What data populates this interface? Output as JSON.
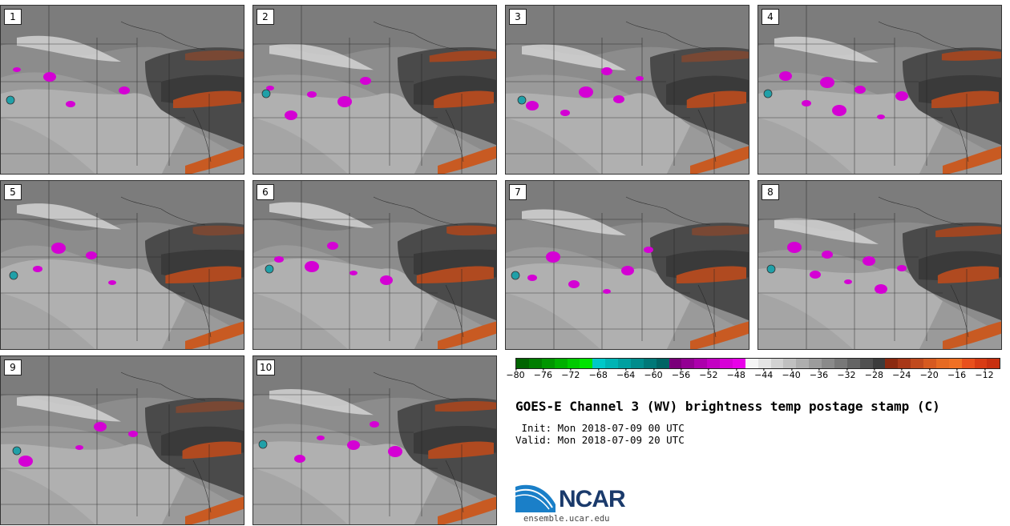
{
  "stamps": [
    {
      "label": "1"
    },
    {
      "label": "2"
    },
    {
      "label": "3"
    },
    {
      "label": "4"
    },
    {
      "label": "5"
    },
    {
      "label": "6"
    },
    {
      "label": "7"
    },
    {
      "label": "8"
    },
    {
      "label": "9"
    },
    {
      "label": "10"
    }
  ],
  "colorbar": {
    "colors": [
      "#006400",
      "#007d00",
      "#009600",
      "#00b000",
      "#00ca00",
      "#00e400",
      "#00c8c8",
      "#00b4b4",
      "#00a0a0",
      "#008c8c",
      "#007878",
      "#006464",
      "#7a007a",
      "#930093",
      "#ac00ac",
      "#c300c3",
      "#d700d7",
      "#e800e8",
      "#f5f5f5",
      "#e4e4e4",
      "#d2d2d2",
      "#c0c0c0",
      "#aeaeae",
      "#9c9c9c",
      "#8a8a8a",
      "#787878",
      "#646464",
      "#505050",
      "#3c3c3c",
      "#8b2a10",
      "#a83818",
      "#c04a1e",
      "#d65a20",
      "#e66a22",
      "#f07024",
      "#e8501c",
      "#d83c14",
      "#c83010"
    ],
    "ticks": [
      "−80",
      "−76",
      "−72",
      "−68",
      "−64",
      "−60",
      "−56",
      "−52",
      "−48",
      "−44",
      "−40",
      "−36",
      "−32",
      "−28",
      "−24",
      "−20",
      "−16",
      "−12"
    ]
  },
  "title": "GOES-E Channel 3 (WV) brightness temp postage stamp (C)",
  "init_line": " Init: Mon 2018-07-09 00 UTC",
  "valid_line": "Valid: Mon 2018-07-09 20 UTC",
  "logo": {
    "text": "NCAR",
    "accent": "#1a7fc8"
  },
  "website": "ensemble.ucar.edu"
}
